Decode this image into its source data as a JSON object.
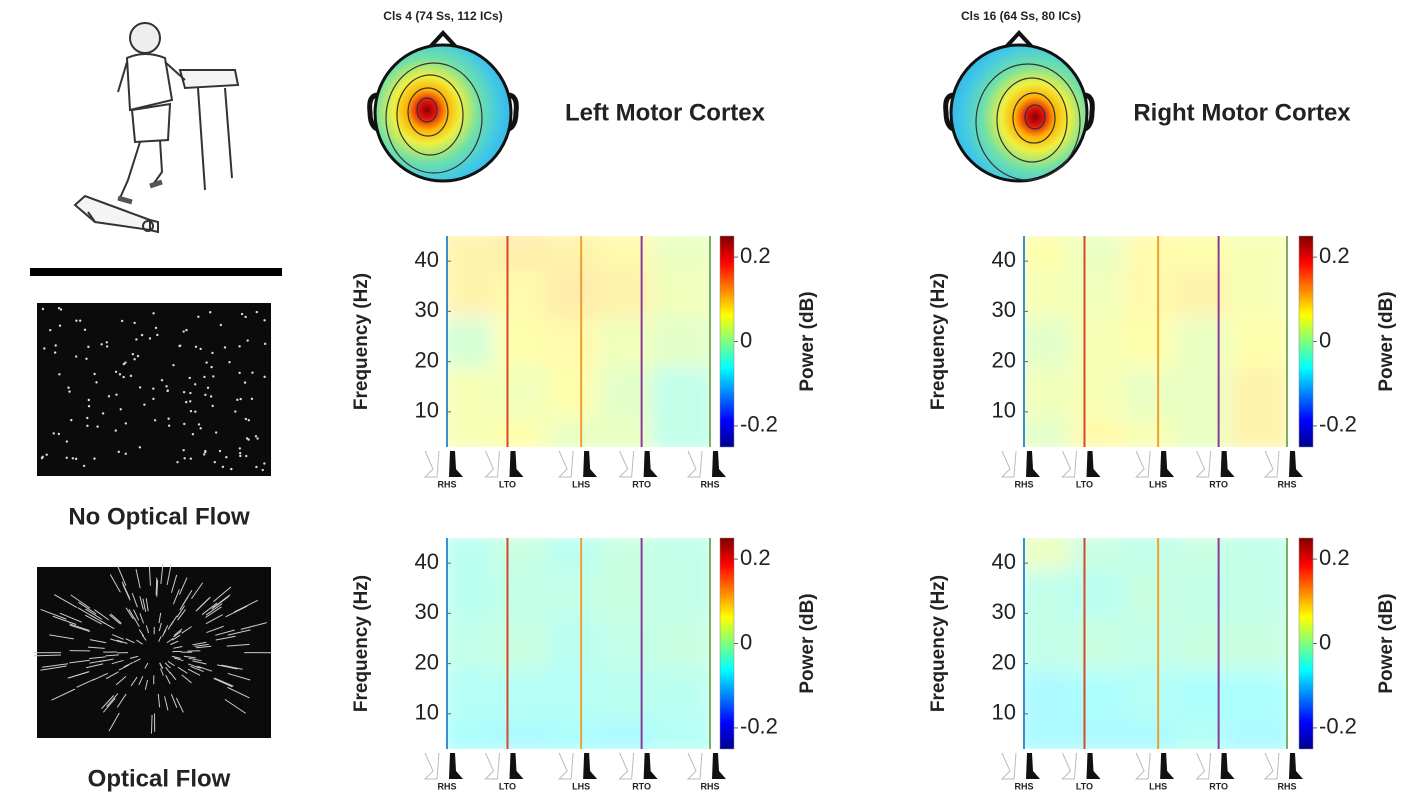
{
  "conditions": [
    "No Optical Flow",
    "Optical Flow"
  ],
  "clusters": [
    {
      "label": "Cls 4 (74 Ss, 112 ICs)",
      "region": "Left Motor Cortex"
    },
    {
      "label": "Cls 16 (64 Ss, 80 ICs)",
      "region": "Right Motor Cortex"
    }
  ],
  "chart_data": [
    {
      "type": "heatmap",
      "ylabel": "Frequency (Hz)",
      "colorbar_label": "Power (dB)",
      "categories": [
        "RHS",
        "LTO",
        "LHS",
        "RTO",
        "RHS"
      ],
      "x": [
        0,
        23,
        51,
        74,
        100
      ],
      "event_colors": [
        "#3b8fd0",
        "#d9462b",
        "#f0a030",
        "#8a3a9a",
        "#78b060"
      ],
      "xlim": [
        0,
        100
      ],
      "ylim": [
        3,
        45
      ],
      "yticks": [
        10,
        20,
        30,
        40
      ],
      "clim": [
        -0.25,
        0.25
      ],
      "cticks": [
        -0.2,
        0,
        0.2
      ],
      "x_bins": [
        0,
        20,
        40,
        60,
        80,
        100
      ],
      "y_bins": [
        3,
        10,
        20,
        30,
        40,
        45
      ],
      "z": [
        [
          0.05,
          0.06,
          0.03,
          0.03,
          -0.03
        ],
        [
          0.05,
          0.04,
          0.06,
          0.02,
          -0.03
        ],
        [
          0,
          0.06,
          0.07,
          0.04,
          0.02
        ],
        [
          0.08,
          0.07,
          0.09,
          0.08,
          0.04
        ],
        [
          0.08,
          0.09,
          0.08,
          0.07,
          0.03
        ]
      ]
    },
    {
      "type": "heatmap",
      "ylabel": "Frequency (Hz)",
      "colorbar_label": "Power (dB)",
      "categories": [
        "RHS",
        "LTO",
        "LHS",
        "RTO",
        "RHS"
      ],
      "x": [
        0,
        23,
        51,
        74,
        100
      ],
      "event_colors": [
        "#3b8fd0",
        "#d9462b",
        "#f0a030",
        "#8a3a9a",
        "#78b060"
      ],
      "xlim": [
        0,
        100
      ],
      "ylim": [
        3,
        45
      ],
      "yticks": [
        10,
        20,
        30,
        40
      ],
      "clim": [
        -0.25,
        0.25
      ],
      "cticks": [
        -0.2,
        0,
        0.2
      ],
      "x_bins": [
        0,
        20,
        40,
        60,
        80,
        100
      ],
      "y_bins": [
        3,
        10,
        20,
        30,
        40,
        45
      ],
      "z": [
        [
          0.02,
          0.07,
          0.05,
          0.03,
          0.08
        ],
        [
          0.04,
          0.05,
          0.03,
          0.03,
          0.08
        ],
        [
          0.02,
          0.05,
          0.06,
          0.03,
          0.06
        ],
        [
          0.05,
          0.04,
          0.07,
          0.08,
          0.05
        ],
        [
          0.06,
          0.03,
          0.07,
          0.06,
          0.05
        ]
      ]
    },
    {
      "type": "heatmap",
      "ylabel": "Frequency (Hz)",
      "colorbar_label": "Power (dB)",
      "categories": [
        "RHS",
        "LTO",
        "LHS",
        "RTO",
        "RHS"
      ],
      "x": [
        0,
        23,
        51,
        74,
        100
      ],
      "event_colors": [
        "#3b8fd0",
        "#d9462b",
        "#f0a030",
        "#8a3a9a",
        "#78b060"
      ],
      "xlim": [
        0,
        100
      ],
      "ylim": [
        3,
        45
      ],
      "yticks": [
        10,
        20,
        30,
        40
      ],
      "clim": [
        -0.25,
        0.25
      ],
      "cticks": [
        -0.2,
        0,
        0.2
      ],
      "x_bins": [
        0,
        20,
        40,
        60,
        80,
        100
      ],
      "y_bins": [
        3,
        10,
        20,
        30,
        40,
        45
      ],
      "z": [
        [
          -0.06,
          -0.07,
          -0.06,
          -0.07,
          -0.05
        ],
        [
          -0.05,
          -0.05,
          -0.05,
          -0.04,
          -0.04
        ],
        [
          -0.03,
          -0.02,
          -0.04,
          -0.03,
          -0.02
        ],
        [
          -0.04,
          -0.03,
          -0.03,
          -0.02,
          -0.03
        ],
        [
          -0.04,
          -0.02,
          -0.04,
          -0.02,
          -0.03
        ]
      ]
    },
    {
      "type": "heatmap",
      "ylabel": "Frequency (Hz)",
      "colorbar_label": "Power (dB)",
      "categories": [
        "RHS",
        "LTO",
        "LHS",
        "RTO",
        "RHS"
      ],
      "x": [
        0,
        23,
        51,
        74,
        100
      ],
      "event_colors": [
        "#3b8fd0",
        "#d9462b",
        "#f0a030",
        "#8a3a9a",
        "#78b060"
      ],
      "xlim": [
        0,
        100
      ],
      "ylim": [
        3,
        45
      ],
      "yticks": [
        10,
        20,
        30,
        40
      ],
      "clim": [
        -0.25,
        0.25
      ],
      "cticks": [
        -0.2,
        0,
        0.2
      ],
      "x_bins": [
        0,
        20,
        40,
        60,
        80,
        100
      ],
      "y_bins": [
        3,
        10,
        20,
        30,
        40,
        45
      ],
      "z": [
        [
          -0.07,
          -0.07,
          -0.07,
          -0.05,
          -0.07
        ],
        [
          -0.07,
          -0.06,
          -0.05,
          -0.06,
          -0.06
        ],
        [
          -0.03,
          -0.02,
          -0.03,
          -0.02,
          -0.02
        ],
        [
          -0.03,
          -0.04,
          -0.02,
          -0.03,
          -0.03
        ],
        [
          0.03,
          -0.02,
          -0.03,
          -0.02,
          -0.03
        ]
      ]
    }
  ]
}
